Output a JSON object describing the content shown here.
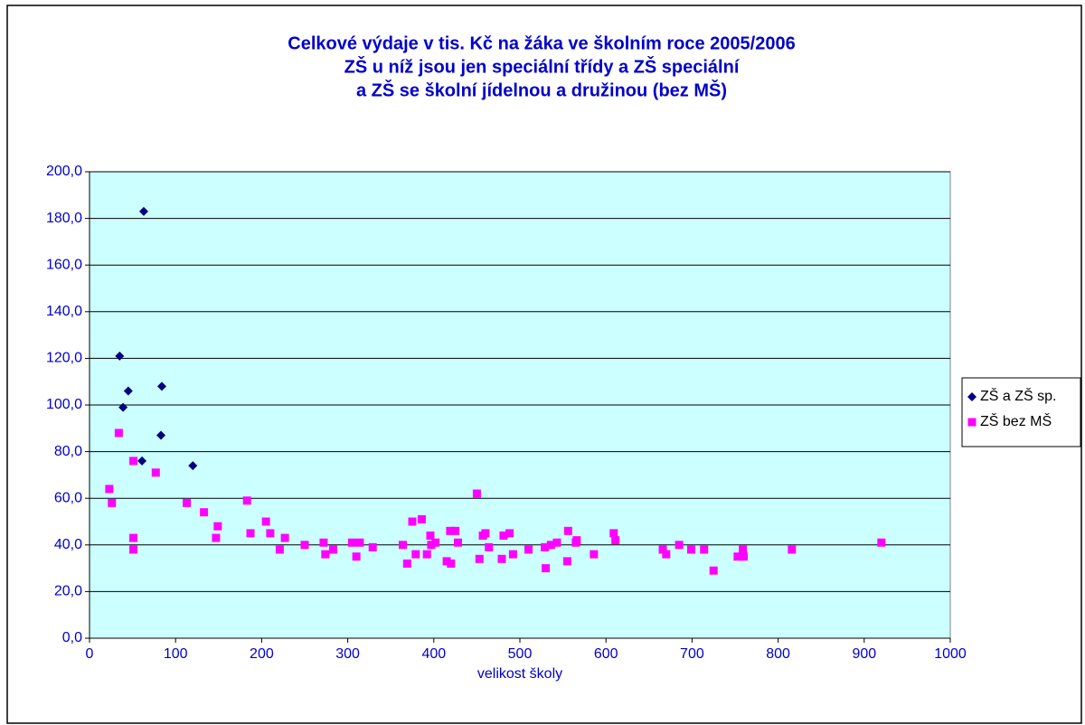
{
  "chart_data": {
    "type": "scatter",
    "title": [
      "Celkové výdaje v tis. Kč na žáka ve školním roce 2005/2006",
      "ZŠ u níž jsou jen speciální třídy a ZŠ speciální",
      "a ZŠ se školní jídelnou a družinou (bez MŠ)"
    ],
    "xlabel": "velikost školy",
    "xlim": [
      0,
      1000
    ],
    "xticks": [
      0,
      100,
      200,
      300,
      400,
      500,
      600,
      700,
      800,
      900,
      1000
    ],
    "ylim": [
      0,
      200
    ],
    "yticks": [
      {
        "value": 0,
        "label": "0,0"
      },
      {
        "value": 20,
        "label": "20,0"
      },
      {
        "value": 40,
        "label": "40,0"
      },
      {
        "value": 60,
        "label": "60,0"
      },
      {
        "value": 80,
        "label": "80,0"
      },
      {
        "value": 100,
        "label": "100,0"
      },
      {
        "value": 120,
        "label": "120,0"
      },
      {
        "value": 140,
        "label": "140,0"
      },
      {
        "value": 160,
        "label": "160,0"
      },
      {
        "value": 180,
        "label": "180,0"
      },
      {
        "value": 200,
        "label": "200,0"
      }
    ],
    "grid": true,
    "legend": "right",
    "background": "#ccffff",
    "series": [
      {
        "name": "ZŠ a ZŠ sp.",
        "color": "#000080",
        "marker": "diamond",
        "x": [
          63,
          35,
          39,
          45,
          84,
          83,
          61,
          120
        ],
        "values": [
          183,
          121,
          99,
          106,
          108,
          87,
          76,
          74
        ]
      },
      {
        "name": "ZŠ bez MŠ",
        "color": "#ff00ff",
        "marker": "square",
        "x": [
          23,
          26,
          34,
          51,
          51,
          51,
          77,
          113,
          133,
          149,
          147,
          183,
          187,
          205,
          210,
          221,
          227,
          250,
          272,
          274,
          283,
          305,
          310,
          314,
          329,
          364,
          369,
          375,
          379,
          386,
          392,
          396,
          397,
          402,
          415,
          420,
          419,
          425,
          428,
          450,
          453,
          457,
          460,
          464,
          479,
          481,
          488,
          492,
          510,
          529,
          530,
          536,
          543,
          555,
          556,
          565,
          566,
          586,
          609,
          611,
          666,
          670,
          685,
          699,
          714,
          725,
          753,
          759,
          760,
          816,
          920
        ],
        "values": [
          64,
          58,
          88,
          76,
          43,
          38,
          71,
          58,
          54,
          48,
          43,
          59,
          45,
          50,
          45,
          38,
          43,
          40,
          41,
          36,
          38,
          41,
          35,
          41,
          39,
          40,
          32,
          50,
          36,
          51,
          36,
          44,
          40,
          41,
          33,
          32,
          46,
          46,
          41,
          62,
          34,
          44,
          45,
          39,
          34,
          44,
          45,
          36,
          38,
          39,
          30,
          40,
          41,
          33,
          46,
          41,
          42,
          36,
          45,
          42,
          38,
          36,
          40,
          38,
          38,
          29,
          35,
          38,
          35,
          38,
          41
        ]
      }
    ]
  }
}
